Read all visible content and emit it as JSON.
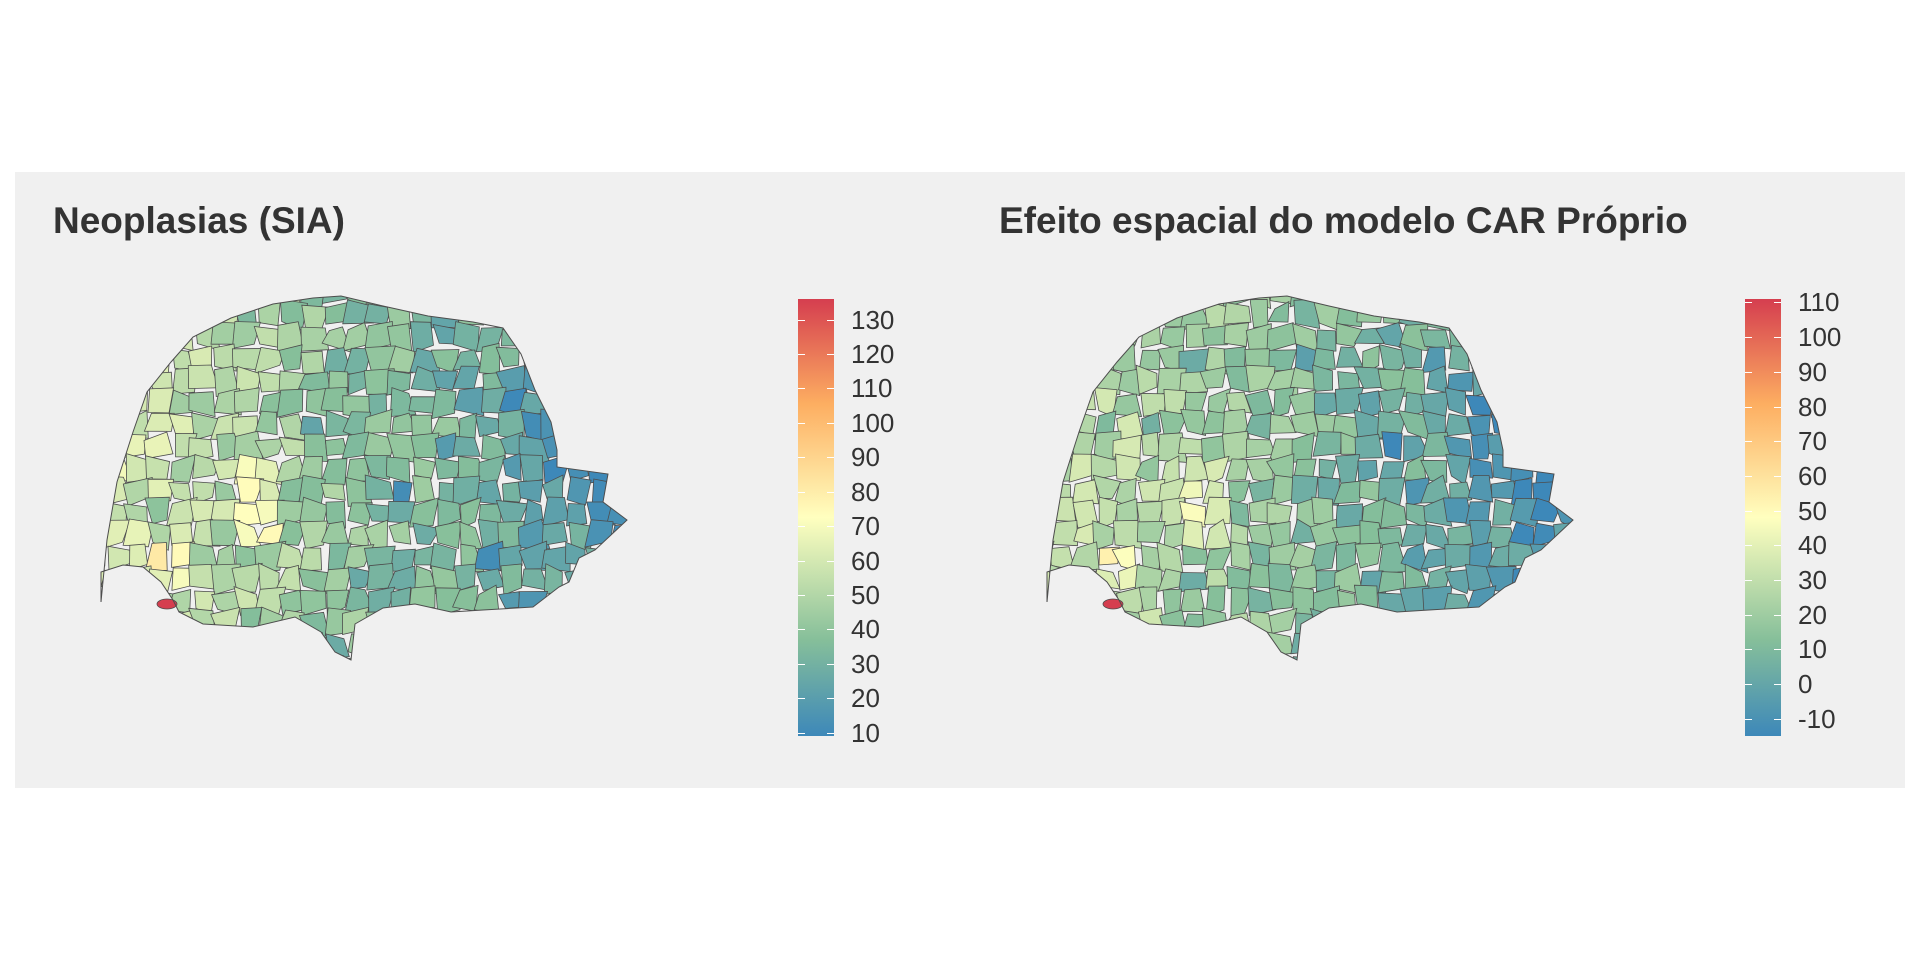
{
  "panels": [
    {
      "title": "Neoplasias (SIA)",
      "legend": {
        "min": 9,
        "max": 136,
        "ticks": [
          "130",
          "120",
          "110",
          "100",
          "90",
          "80",
          "70",
          "60",
          "50",
          "40",
          "30",
          "20",
          "10"
        ],
        "tick_values": [
          130,
          120,
          110,
          100,
          90,
          80,
          70,
          60,
          50,
          40,
          30,
          20,
          10
        ]
      }
    },
    {
      "title": "Efeito espacial do modelo CAR Próprio",
      "legend": {
        "min": -15,
        "max": 111,
        "ticks": [
          "110",
          "100",
          "90",
          "80",
          "70",
          "60",
          "50",
          "40",
          "30",
          "20",
          "10",
          "0",
          "-10"
        ],
        "tick_values": [
          110,
          100,
          90,
          80,
          70,
          60,
          50,
          40,
          30,
          20,
          10,
          0,
          -10
        ]
      }
    }
  ],
  "colors": {
    "low": "#3d88b9",
    "mid_low": "#86bf9a",
    "mid": "#ffffbf",
    "mid_high": "#fdae61",
    "high": "#d53e4f"
  }
}
